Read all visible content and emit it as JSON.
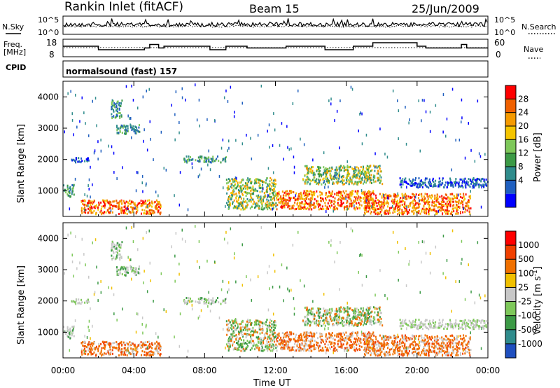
{
  "header": {
    "station": "Rankin Inlet (fitACF)",
    "beam": "Beam 15",
    "date": "25/Jun/2009"
  },
  "top_panels": {
    "nsky_label": "N.Sky",
    "nsearch_label": "N.Search",
    "count_ticks_left": [
      "10^5",
      "10^0"
    ],
    "count_ticks_right": [
      "10^5",
      "10^0"
    ],
    "freq_label_1": "Freq.",
    "freq_label_2": "[MHz]",
    "freq_ticks": [
      "18",
      "8"
    ],
    "nave_label": "Nave",
    "nave_ticks": [
      "60",
      "0"
    ],
    "cpid_label": "CPID",
    "cpid_text": "normalsound (fast) 157"
  },
  "chart_data": [
    {
      "type": "line",
      "name": "noise-panel",
      "series": [
        {
          "name": "N.Sky",
          "style": "solid",
          "description_level": "noisy near top of scale"
        },
        {
          "name": "N.Search",
          "style": "dotted"
        }
      ]
    },
    {
      "type": "line",
      "name": "frequency-nave-panel",
      "ylim_left": [
        8,
        18
      ],
      "ylim_right": [
        0,
        60
      ],
      "x": [
        0,
        0.5,
        1,
        2,
        4.6,
        4.9,
        5.4,
        5.7,
        7.6,
        8.3,
        9.2,
        10.4,
        12.6,
        14.8,
        16.4,
        17.5,
        19.4,
        20.0,
        20.5,
        22.5,
        22.8,
        23.5,
        24
      ],
      "nave": [
        14,
        14,
        14,
        12,
        13,
        15,
        13,
        14,
        14,
        12,
        14,
        13,
        14,
        12,
        14,
        16,
        16,
        14,
        13,
        15,
        13,
        13,
        13
      ]
    },
    {
      "type": "heatmap",
      "name": "power-panel",
      "ylabel": "Slant Range [km]",
      "yticks": [
        1000,
        2000,
        3000,
        4000
      ],
      "ylim": [
        180,
        4500
      ],
      "colorbar_label": "Power [dB]",
      "colorbar_ticks": [
        "28",
        "24",
        "20",
        "16",
        "12",
        "8",
        "4"
      ],
      "colorbar_colors": [
        "#0000ff",
        "#1f5fbf",
        "#2f8c8c",
        "#3c9a46",
        "#7ec85a",
        "#f5c500",
        "#f59a00",
        "#f06000",
        "#ff0000"
      ],
      "scatter_regions_hours_km": [
        {
          "t": [
            0.0,
            0.6
          ],
          "r": [
            800,
            1200
          ],
          "level": "low-mid"
        },
        {
          "t": [
            0.4,
            1.5
          ],
          "r": [
            1900,
            2050
          ],
          "level": "low"
        },
        {
          "t": [
            2.7,
            3.3
          ],
          "r": [
            3300,
            3900
          ],
          "level": "low-mid"
        },
        {
          "t": [
            3.0,
            4.4
          ],
          "r": [
            2800,
            3100
          ],
          "level": "low-mid"
        },
        {
          "t": [
            1.0,
            5.5
          ],
          "r": [
            250,
            700
          ],
          "level": "high"
        },
        {
          "t": [
            6.8,
            9.2
          ],
          "r": [
            1900,
            2100
          ],
          "level": "low-mid"
        },
        {
          "t": [
            9.2,
            12.0
          ],
          "r": [
            400,
            1400
          ],
          "level": "mid"
        },
        {
          "t": [
            12.0,
            17.5
          ],
          "r": [
            400,
            1000
          ],
          "level": "high"
        },
        {
          "t": [
            13.5,
            18.0
          ],
          "r": [
            1200,
            1800
          ],
          "level": "mid"
        },
        {
          "t": [
            17.0,
            23.0
          ],
          "r": [
            250,
            900
          ],
          "level": "high"
        },
        {
          "t": [
            19.0,
            24.0
          ],
          "r": [
            1100,
            1400
          ],
          "level": "low"
        }
      ]
    },
    {
      "type": "heatmap",
      "name": "velocity-panel",
      "ylabel": "Slant Range [km]",
      "yticks": [
        1000,
        2000,
        3000,
        4000
      ],
      "ylim": [
        180,
        4500
      ],
      "colorbar_label": "Velocity [m s^-1]",
      "colorbar_ticks": [
        "1000",
        "500",
        "100",
        "25",
        "-25",
        "-100",
        "-500",
        "-1000"
      ],
      "colorbar_colors": [
        "#1f4fbf",
        "#2f8c8c",
        "#3c9a46",
        "#7ec85a",
        "#c8c8c8",
        "#f0c000",
        "#f07000",
        "#f04000",
        "#ff0000"
      ],
      "xlabel": "Time UT",
      "xticks": [
        "00:00",
        "04:00",
        "08:00",
        "12:00",
        "16:00",
        "20:00",
        "00:00"
      ],
      "xlim_hours": [
        0,
        24
      ]
    }
  ]
}
